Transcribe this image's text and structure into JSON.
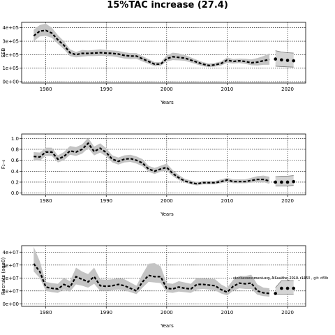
{
  "title": "15%TAC increase (27.4)",
  "chart_data": [
    {
      "type": "line",
      "ylabel": "SSB",
      "xlabel": "Years",
      "xlim": [
        1976,
        2023
      ],
      "ylim": [
        -10000,
        440000
      ],
      "xticks": [
        1980,
        1990,
        2000,
        2010,
        2020
      ],
      "yticks": [
        0,
        100000,
        200000,
        300000,
        400000
      ],
      "ytick_labels": [
        "0e+00",
        "1e+05",
        "2e+05",
        "3e+05",
        "4e+05"
      ],
      "grid": true,
      "x": [
        1978,
        1979,
        1980,
        1981,
        1982,
        1983,
        1984,
        1985,
        1986,
        1987,
        1988,
        1989,
        1990,
        1991,
        1992,
        1993,
        1994,
        1995,
        1996,
        1997,
        1998,
        1999,
        2000,
        2001,
        2002,
        2003,
        2004,
        2005,
        2006,
        2007,
        2008,
        2009,
        2010,
        2011,
        2012,
        2013,
        2014,
        2015,
        2016,
        2017
      ],
      "y": [
        340000,
        375000,
        380000,
        360000,
        310000,
        270000,
        215000,
        200000,
        210000,
        210000,
        212000,
        215000,
        212000,
        210000,
        205000,
        195000,
        190000,
        190000,
        170000,
        150000,
        130000,
        130000,
        170000,
        185000,
        180000,
        175000,
        160000,
        145000,
        130000,
        120000,
        125000,
        135000,
        160000,
        150000,
        155000,
        150000,
        140000,
        145000,
        155000,
        165000
      ],
      "lower": [
        300000,
        335000,
        340000,
        325000,
        280000,
        240000,
        190000,
        180000,
        185000,
        190000,
        190000,
        192000,
        190000,
        188000,
        180000,
        172000,
        168000,
        170000,
        150000,
        132000,
        115000,
        118000,
        150000,
        160000,
        158000,
        155000,
        142000,
        128000,
        115000,
        108000,
        112000,
        120000,
        140000,
        135000,
        138000,
        132000,
        122000,
        120000,
        125000,
        125000
      ],
      "upper": [
        385000,
        420000,
        430000,
        400000,
        345000,
        300000,
        240000,
        220000,
        235000,
        232000,
        235000,
        240000,
        235000,
        232000,
        228000,
        218000,
        212000,
        212000,
        190000,
        168000,
        145000,
        145000,
        195000,
        215000,
        210000,
        198000,
        180000,
        162000,
        145000,
        135000,
        140000,
        150000,
        180000,
        168000,
        172000,
        170000,
        165000,
        175000,
        190000,
        210000
      ],
      "forecast_x": [
        2018,
        2019,
        2020,
        2021
      ],
      "forecast_y": [
        168000,
        162000,
        158000,
        155000
      ],
      "forecast_lower": [
        115000,
        112000,
        110000,
        108000
      ],
      "forecast_upper": [
        230000,
        220000,
        215000,
        212000
      ]
    },
    {
      "type": "line",
      "ylabel": "F₂₋₆",
      "xlabel": "Years",
      "xlim": [
        1976,
        2023
      ],
      "ylim": [
        -0.03,
        1.08
      ],
      "xticks": [
        1980,
        1990,
        2000,
        2010,
        2020
      ],
      "yticks": [
        0.0,
        0.2,
        0.4,
        0.6,
        0.8,
        1.0
      ],
      "ytick_labels": [
        "0.0",
        "0.2",
        "0.4",
        "0.6",
        "0.8",
        "1.0"
      ],
      "grid": true,
      "x": [
        1978,
        1979,
        1980,
        1981,
        1982,
        1983,
        1984,
        1985,
        1986,
        1987,
        1988,
        1989,
        1990,
        1991,
        1992,
        1993,
        1994,
        1995,
        1996,
        1997,
        1998,
        1999,
        2000,
        2001,
        2002,
        2003,
        2004,
        2005,
        2006,
        2007,
        2008,
        2009,
        2010,
        2011,
        2012,
        2013,
        2014,
        2015,
        2016,
        2017
      ],
      "y": [
        0.67,
        0.66,
        0.75,
        0.75,
        0.62,
        0.67,
        0.77,
        0.75,
        0.8,
        0.91,
        0.76,
        0.82,
        0.74,
        0.62,
        0.58,
        0.62,
        0.63,
        0.6,
        0.55,
        0.44,
        0.4,
        0.44,
        0.47,
        0.36,
        0.28,
        0.22,
        0.19,
        0.17,
        0.19,
        0.19,
        0.19,
        0.21,
        0.24,
        0.21,
        0.21,
        0.21,
        0.23,
        0.25,
        0.25,
        0.22
      ],
      "lower": [
        0.6,
        0.59,
        0.68,
        0.68,
        0.56,
        0.6,
        0.7,
        0.68,
        0.72,
        0.82,
        0.69,
        0.74,
        0.67,
        0.56,
        0.52,
        0.56,
        0.57,
        0.54,
        0.49,
        0.39,
        0.35,
        0.39,
        0.41,
        0.31,
        0.24,
        0.19,
        0.16,
        0.14,
        0.16,
        0.16,
        0.16,
        0.18,
        0.2,
        0.18,
        0.18,
        0.18,
        0.19,
        0.2,
        0.2,
        0.17
      ],
      "upper": [
        0.75,
        0.74,
        0.83,
        0.83,
        0.69,
        0.75,
        0.86,
        0.84,
        0.89,
        1.01,
        0.85,
        0.91,
        0.82,
        0.69,
        0.65,
        0.69,
        0.7,
        0.67,
        0.62,
        0.5,
        0.46,
        0.5,
        0.54,
        0.42,
        0.33,
        0.26,
        0.23,
        0.2,
        0.22,
        0.22,
        0.22,
        0.25,
        0.28,
        0.25,
        0.25,
        0.25,
        0.28,
        0.31,
        0.32,
        0.3
      ],
      "forecast_x": [
        2018,
        2019,
        2020,
        2021
      ],
      "forecast_y": [
        0.2,
        0.2,
        0.2,
        0.21
      ],
      "forecast_lower": [
        0.13,
        0.13,
        0.13,
        0.14
      ],
      "forecast_upper": [
        0.3,
        0.31,
        0.31,
        0.32
      ]
    },
    {
      "type": "line",
      "ylabel": "Recruits (age0)",
      "xlabel": "Years",
      "xlim": [
        1976,
        2023
      ],
      "ylim": [
        -2000000,
        45000000
      ],
      "xticks": [
        1980,
        1990,
        2000,
        2010,
        2020
      ],
      "yticks": [
        0,
        10000000,
        20000000,
        30000000,
        40000000
      ],
      "ytick_labels": [
        "0e+00",
        "1e+07",
        "2e+07",
        "3e+07",
        "4e+07"
      ],
      "grid": true,
      "annotation": "stockassessment.org, NSsaithe_2019_r1450 , git: df0b",
      "x": [
        1978,
        1979,
        1980,
        1981,
        1982,
        1983,
        1984,
        1985,
        1986,
        1987,
        1988,
        1989,
        1990,
        1991,
        1992,
        1993,
        1994,
        1995,
        1996,
        1997,
        1998,
        1999,
        2000,
        2001,
        2002,
        2003,
        2004,
        2005,
        2006,
        2007,
        2008,
        2009,
        2010,
        2011,
        2012,
        2013,
        2014,
        2015,
        2016,
        2017
      ],
      "y": [
        31000000,
        25000000,
        13000000,
        12000000,
        11500000,
        15000000,
        13000000,
        21000000,
        19000000,
        17000000,
        21000000,
        14000000,
        13500000,
        14000000,
        15000000,
        14000000,
        12000000,
        10000000,
        17000000,
        22000000,
        21000000,
        21000000,
        12000000,
        11500000,
        13000000,
        12000000,
        11500000,
        15000000,
        15000000,
        14500000,
        14000000,
        11000000,
        9000000,
        13500000,
        16000000,
        15500000,
        16000000,
        10000000,
        8500000,
        8000000
      ],
      "lower": [
        25000000,
        20000000,
        10000000,
        9000000,
        8500000,
        11000000,
        9500000,
        15000000,
        14000000,
        12500000,
        15500000,
        10000000,
        10000000,
        10500000,
        11000000,
        10500000,
        9000000,
        7500000,
        12500000,
        17000000,
        16500000,
        16000000,
        9000000,
        8500000,
        9500000,
        9000000,
        8500000,
        11000000,
        11500000,
        11000000,
        10500000,
        8000000,
        6500000,
        10000000,
        12000000,
        11500000,
        11500000,
        7000000,
        6000000,
        5500000
      ],
      "upper": [
        44000000,
        33000000,
        17000000,
        16000000,
        15500000,
        20000000,
        17500000,
        28000000,
        25000000,
        23000000,
        28000000,
        19000000,
        18500000,
        19000000,
        20000000,
        19000000,
        16500000,
        14000000,
        23000000,
        31000000,
        31500000,
        29000000,
        16000000,
        15500000,
        17500000,
        16500000,
        15500000,
        20000000,
        20000000,
        19500000,
        19000000,
        15000000,
        12500000,
        18500000,
        21500000,
        21500000,
        22500000,
        15000000,
        12500000,
        12000000
      ],
      "forecast_x": [
        2018,
        2019,
        2020,
        2021
      ],
      "forecast_y": [
        8000000,
        12000000,
        12000000,
        12000000
      ],
      "forecast_lower": [
        7500000,
        7500000,
        7500000,
        7500000
      ],
      "forecast_upper": [
        12500000,
        18000000,
        18000000,
        18000000
      ]
    }
  ]
}
